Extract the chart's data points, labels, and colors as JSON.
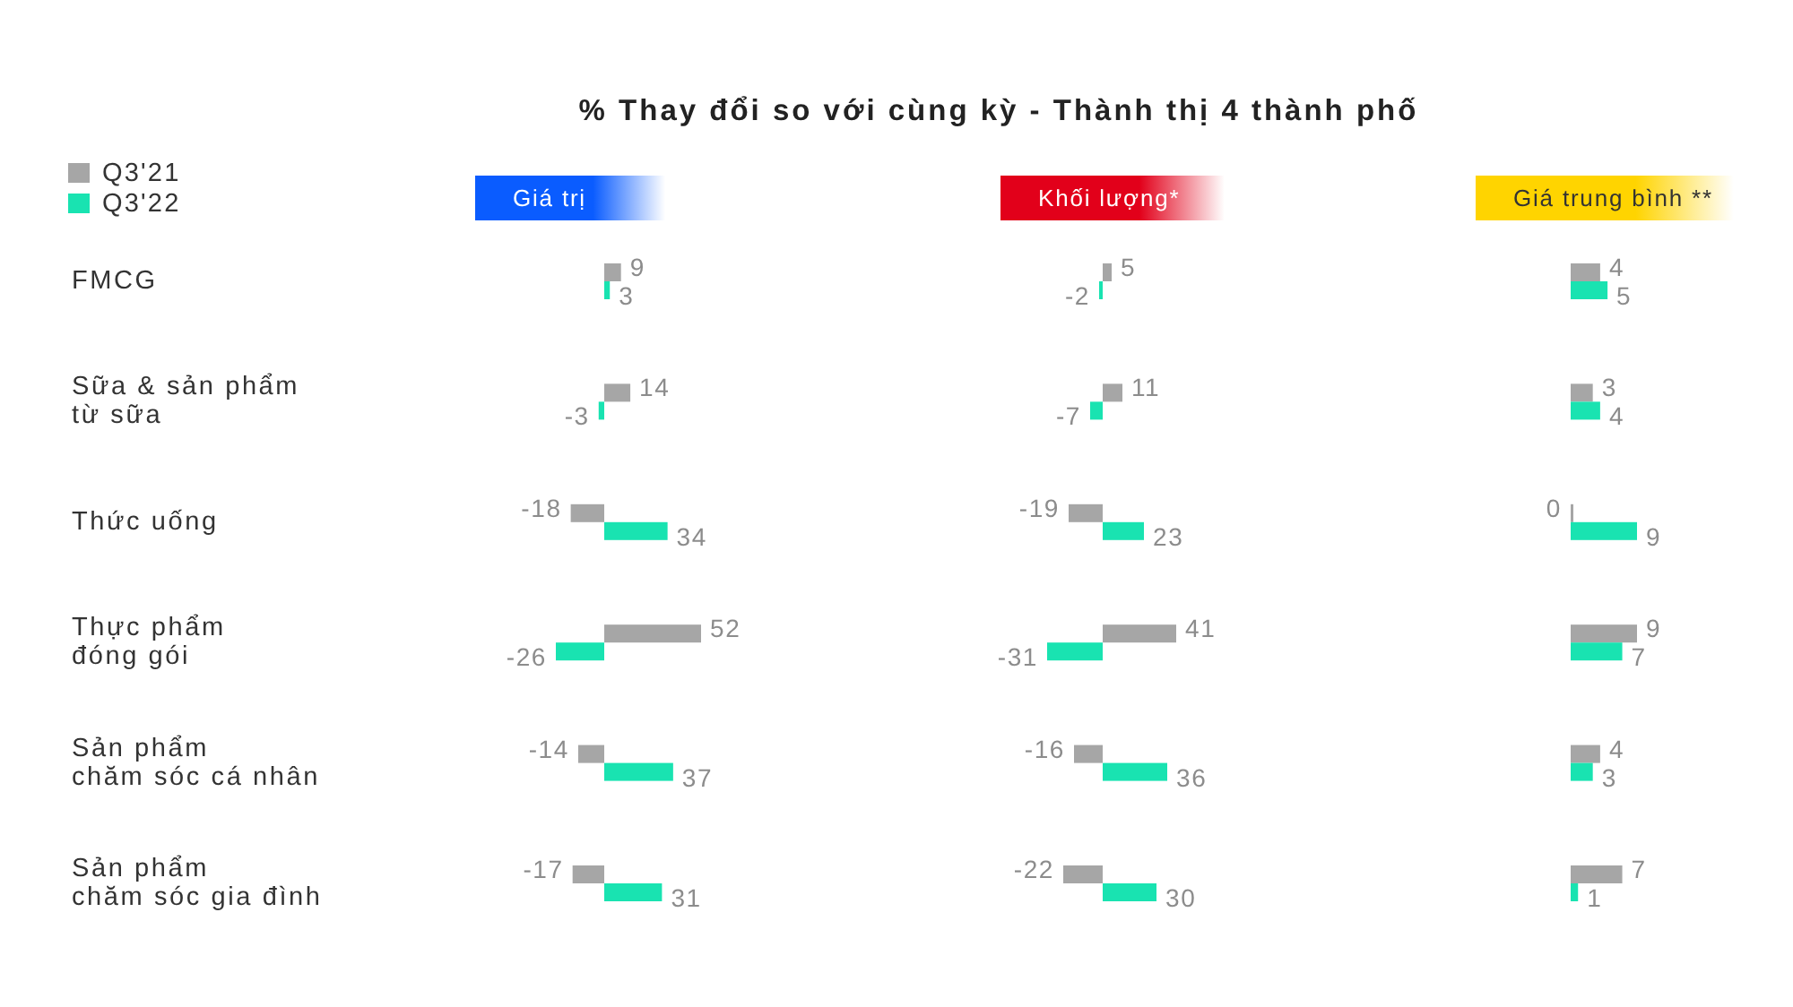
{
  "chart_data": [
    {
      "type": "bar",
      "orientation": "horizontal",
      "title": "% Thay đổi so với cùng kỳ - Thành thị 4 thành phố",
      "subtitle": "Giá trị",
      "categories": [
        "FMCG",
        "Sữa & sản phẩm\ntừ sữa",
        "Thức uống",
        "Thực phẩm\nđóng gói",
        "Sản phẩm\nchăm sóc cá nhân",
        "Sản phẩm\nchăm sóc gia đình"
      ],
      "series": [
        {
          "name": "Q3'21",
          "color": "#a6a6a6",
          "values": [
            9,
            14,
            -18,
            52,
            -14,
            -17
          ]
        },
        {
          "name": "Q3'22",
          "color": "#19e3b1",
          "values": [
            3,
            -3,
            34,
            -26,
            37,
            31
          ]
        }
      ],
      "data_labels": true,
      "legend": "top left",
      "tick_labels": "y"
    },
    {
      "type": "bar",
      "orientation": "horizontal",
      "subtitle": "Khối lượng*",
      "categories": [
        null,
        null,
        null,
        null,
        null,
        null
      ],
      "series": [
        {
          "color": "#a6a6a6",
          "values": [
            5,
            11,
            -19,
            41,
            -16,
            -22
          ]
        },
        {
          "color": "#19e3b1",
          "values": [
            -2,
            -7,
            23,
            -31,
            36,
            30
          ]
        }
      ],
      "data_labels": true,
      "tick_labels": false
    },
    {
      "type": "bar",
      "orientation": "horizontal",
      "subtitle": "Giá trung bình **",
      "categories": [
        null,
        null,
        null,
        null,
        null,
        null
      ],
      "series": [
        {
          "color": "#a6a6a6",
          "values": [
            4,
            3,
            0,
            9,
            4,
            7
          ]
        },
        {
          "color": "#19e3b1",
          "values": [
            5,
            4,
            9,
            7,
            3,
            1
          ]
        }
      ],
      "data_labels": true,
      "tick_labels": false
    }
  ]
}
